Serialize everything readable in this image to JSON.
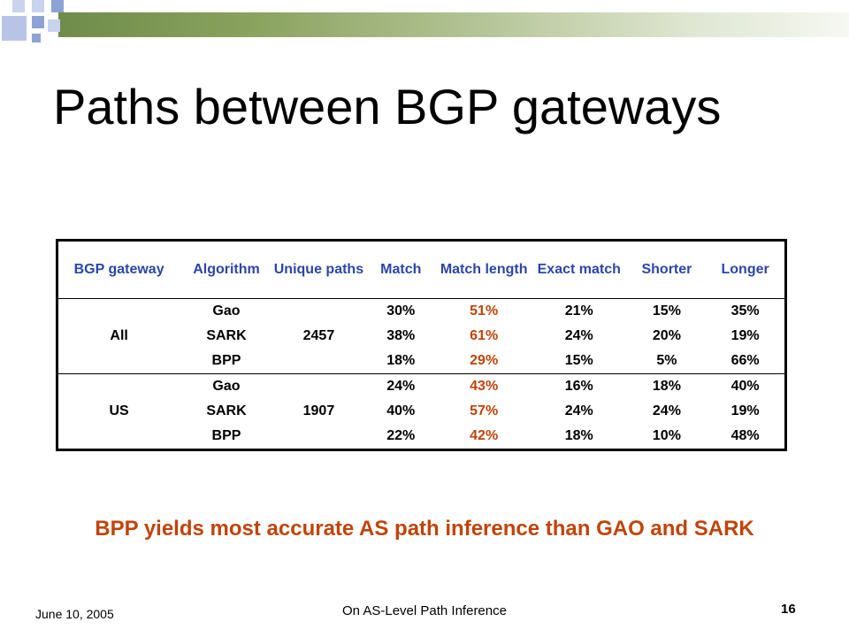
{
  "slide": {
    "title": "Paths between BGP gateways",
    "conclusion": "BPP yields most accurate AS path inference than GAO and SARK",
    "colors": {
      "header_text": "#2b46a8",
      "highlight": "#c0440a",
      "banner_green": "#6f8c4a",
      "banner_blue": "#8da3d6"
    }
  },
  "table": {
    "headers": [
      "BGP gateway",
      "Algorithm",
      "Unique paths",
      "Match",
      "Match length",
      "Exact match",
      "Shorter",
      "Longer"
    ],
    "groups": [
      {
        "gateway": "All",
        "unique_paths": "2457",
        "rows": [
          {
            "algorithm": "Gao",
            "match": "30%",
            "match_length": "51%",
            "exact_match": "21%",
            "shorter": "15%",
            "longer": "35%"
          },
          {
            "algorithm": "SARK",
            "match": "38%",
            "match_length": "61%",
            "exact_match": "24%",
            "shorter": "20%",
            "longer": "19%"
          },
          {
            "algorithm": "BPP",
            "match": "18%",
            "match_length": "29%",
            "exact_match": "15%",
            "shorter": "5%",
            "longer": "66%"
          }
        ]
      },
      {
        "gateway": "US",
        "unique_paths": "1907",
        "rows": [
          {
            "algorithm": "Gao",
            "match": "24%",
            "match_length": "43%",
            "exact_match": "16%",
            "shorter": "18%",
            "longer": "40%"
          },
          {
            "algorithm": "SARK",
            "match": "40%",
            "match_length": "57%",
            "exact_match": "24%",
            "shorter": "24%",
            "longer": "19%"
          },
          {
            "algorithm": "BPP",
            "match": "22%",
            "match_length": "42%",
            "exact_match": "18%",
            "shorter": "10%",
            "longer": "48%"
          }
        ]
      }
    ]
  },
  "footer": {
    "date": "June 10, 2005",
    "title": "On AS-Level Path Inference",
    "page_number": "16"
  }
}
